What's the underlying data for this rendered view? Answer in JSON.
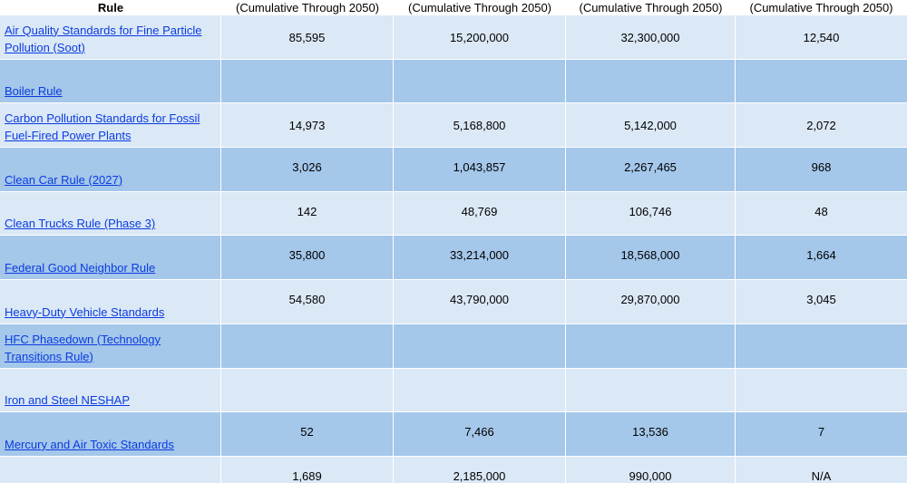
{
  "header": {
    "rule": "Rule",
    "col1": "(Cumulative Through 2050)",
    "col2": "(Cumulative Through 2050)",
    "col3": "(Cumulative Through 2050)",
    "col4": "(Cumulative Through 2050)"
  },
  "rows": [
    {
      "name": "Air Quality Standards for Fine Particle Pollution (Soot)",
      "v1": "85,595",
      "v2": "15,200,000",
      "v3": "32,300,000",
      "v4": "12,540"
    },
    {
      "name": "Boiler Rule",
      "v1": "",
      "v2": "",
      "v3": "",
      "v4": ""
    },
    {
      "name": "Carbon Pollution Standards for Fossil Fuel-Fired Power Plants",
      "v1": "14,973",
      "v2": "5,168,800",
      "v3": "5,142,000",
      "v4": "2,072"
    },
    {
      "name": "Clean Car Rule (2027)",
      "v1": "3,026",
      "v2": "1,043,857",
      "v3": "2,267,465",
      "v4": "968"
    },
    {
      "name": "Clean Trucks Rule (Phase 3)",
      "v1": "142",
      "v2": "48,769",
      "v3": "106,746",
      "v4": "48"
    },
    {
      "name": "Federal Good Neighbor Rule",
      "v1": "35,800",
      "v2": "33,214,000",
      "v3": "18,568,000",
      "v4": "1,664"
    },
    {
      "name": "Heavy-Duty Vehicle Standards",
      "v1": "54,580",
      "v2": "43,790,000",
      "v3": "29,870,000",
      "v4": "3,045"
    },
    {
      "name": "HFC Phasedown (Technology Transitions Rule)",
      "v1": "",
      "v2": "",
      "v3": "",
      "v4": ""
    },
    {
      "name": "Iron and Steel NESHAP",
      "v1": "",
      "v2": "",
      "v3": "",
      "v4": ""
    },
    {
      "name": "Mercury and Air Toxic Standards",
      "v1": "52",
      "v2": "7,466",
      "v3": "13,536",
      "v4": "7"
    },
    {
      "name": "",
      "v1": "1,689",
      "v2": "2,185,000",
      "v3": "990,000",
      "v4": "N/A"
    }
  ]
}
